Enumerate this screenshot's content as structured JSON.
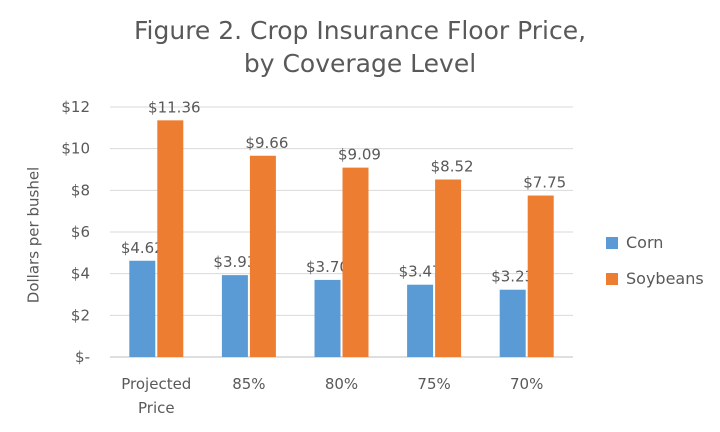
{
  "chart_data": {
    "type": "bar",
    "title_lines": [
      "Figure 2.  Crop Insurance Floor Price,",
      "by Coverage Level"
    ],
    "ylabel": "Dollars per bushel",
    "xlabel": "",
    "categories": [
      [
        "Projected",
        "Price"
      ],
      [
        "85%"
      ],
      [
        "80%"
      ],
      [
        "75%"
      ],
      [
        "70%"
      ]
    ],
    "series": [
      {
        "name": "Corn",
        "color": "#5b9bd5",
        "values": [
          4.62,
          3.93,
          3.7,
          3.47,
          3.23
        ],
        "labels": [
          "$4.62",
          "$3.93",
          "$3.70",
          "$3.47",
          "$3.23"
        ]
      },
      {
        "name": "Soybeans",
        "color": "#ed7d31",
        "values": [
          11.36,
          9.66,
          9.09,
          8.52,
          7.75
        ],
        "labels": [
          "$11.36",
          "$9.66",
          "$9.09",
          "$8.52",
          "$7.75"
        ]
      }
    ],
    "ylim": [
      0,
      12
    ],
    "yticks": [
      0,
      2,
      4,
      6,
      8,
      10,
      12
    ],
    "ytick_labels": [
      "$-",
      "$2",
      "$4",
      "$6",
      "$8",
      "$10",
      "$12"
    ],
    "grid": true,
    "legend_position": "right"
  }
}
